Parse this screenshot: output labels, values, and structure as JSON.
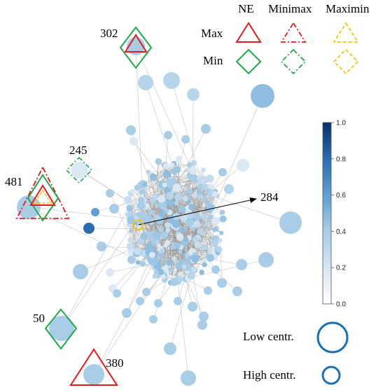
{
  "legend": {
    "col_ne": "NE",
    "col_minimax": "Minimax",
    "col_maximin": "Maximin",
    "row_max": "Max",
    "row_min": "Min"
  },
  "nodes": [
    {
      "id": "302",
      "label": "302"
    },
    {
      "id": "245",
      "label": "245"
    },
    {
      "id": "481",
      "label": "481"
    },
    {
      "id": "284",
      "label": "284"
    },
    {
      "id": "50",
      "label": "50"
    },
    {
      "id": "380",
      "label": "380"
    }
  ],
  "colorbar": {
    "ticks": [
      "1.0",
      "0.8",
      "0.6",
      "0.4",
      "0.2",
      "0.0"
    ],
    "low": "#ffffff",
    "high": "#08306b"
  },
  "size_legend": {
    "low": "Low centr.",
    "high": "High centr."
  },
  "colors": {
    "ne_max": "#e41a1c",
    "ne_min": "#1faa4a",
    "maximin": "#f0c419",
    "node": "#a9cde6",
    "edge": "#9a9a9a",
    "size_ring": "#1b6fb5"
  }
}
